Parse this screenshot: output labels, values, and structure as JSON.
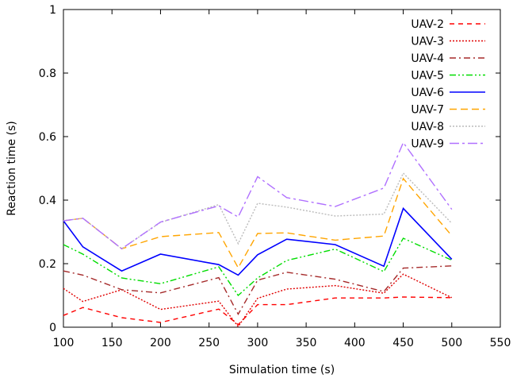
{
  "chart_data": {
    "type": "line",
    "xlabel": "Simulation time (s)",
    "ylabel": "Reaction time (s)",
    "xlim": [
      100,
      550
    ],
    "ylim": [
      0,
      1
    ],
    "xticks": [
      "100",
      "150",
      "200",
      "250",
      "300",
      "350",
      "400",
      "450",
      "500",
      "550"
    ],
    "yticks": [
      "0",
      "0.2",
      "0.4",
      "0.6",
      "0.8",
      "1"
    ],
    "legend_position": "top-right",
    "grid": false,
    "x": [
      100,
      120,
      160,
      200,
      260,
      280,
      300,
      330,
      380,
      430,
      450,
      500
    ],
    "series": [
      {
        "name": "UAV-2",
        "color": "#ff0000",
        "dash": "dashed",
        "values": [
          0.037,
          0.062,
          0.03,
          0.015,
          0.057,
          0.008,
          0.071,
          0.071,
          0.092,
          0.092,
          0.095,
          0.093
        ]
      },
      {
        "name": "UAV-3",
        "color": "#e00000",
        "dash": "dotted",
        "values": [
          0.122,
          0.081,
          0.118,
          0.056,
          0.082,
          0.002,
          0.091,
          0.12,
          0.131,
          0.107,
          0.167,
          0.093
        ]
      },
      {
        "name": "UAV-4",
        "color": "#a52a2a",
        "dash": "dashdot",
        "values": [
          0.177,
          0.164,
          0.118,
          0.108,
          0.156,
          0.041,
          0.148,
          0.173,
          0.151,
          0.112,
          0.186,
          0.193
        ]
      },
      {
        "name": "UAV-5",
        "color": "#00dd00",
        "dash": "dashdotdot",
        "values": [
          0.26,
          0.23,
          0.155,
          0.137,
          0.19,
          0.1,
          0.155,
          0.21,
          0.246,
          0.175,
          0.28,
          0.211
        ]
      },
      {
        "name": "UAV-6",
        "color": "#0000ff",
        "dash": "solid",
        "values": [
          0.335,
          0.253,
          0.177,
          0.23,
          0.197,
          0.164,
          0.228,
          0.277,
          0.26,
          0.192,
          0.374,
          0.214
        ]
      },
      {
        "name": "UAV-7",
        "color": "#ffa500",
        "dash": "longdash",
        "values": [
          0.335,
          0.343,
          0.247,
          0.285,
          0.298,
          0.187,
          0.295,
          0.297,
          0.274,
          0.287,
          0.468,
          0.288
        ]
      },
      {
        "name": "UAV-8",
        "color": "#bbbbbb",
        "dash": "dotted",
        "values": [
          0.335,
          0.343,
          0.247,
          0.33,
          0.386,
          0.263,
          0.39,
          0.378,
          0.35,
          0.356,
          0.485,
          0.327
        ]
      },
      {
        "name": "UAV-9",
        "color": "#b070ff",
        "dash": "longdashdot",
        "values": [
          0.335,
          0.343,
          0.247,
          0.331,
          0.382,
          0.347,
          0.474,
          0.408,
          0.38,
          0.438,
          0.581,
          0.371
        ]
      }
    ]
  }
}
